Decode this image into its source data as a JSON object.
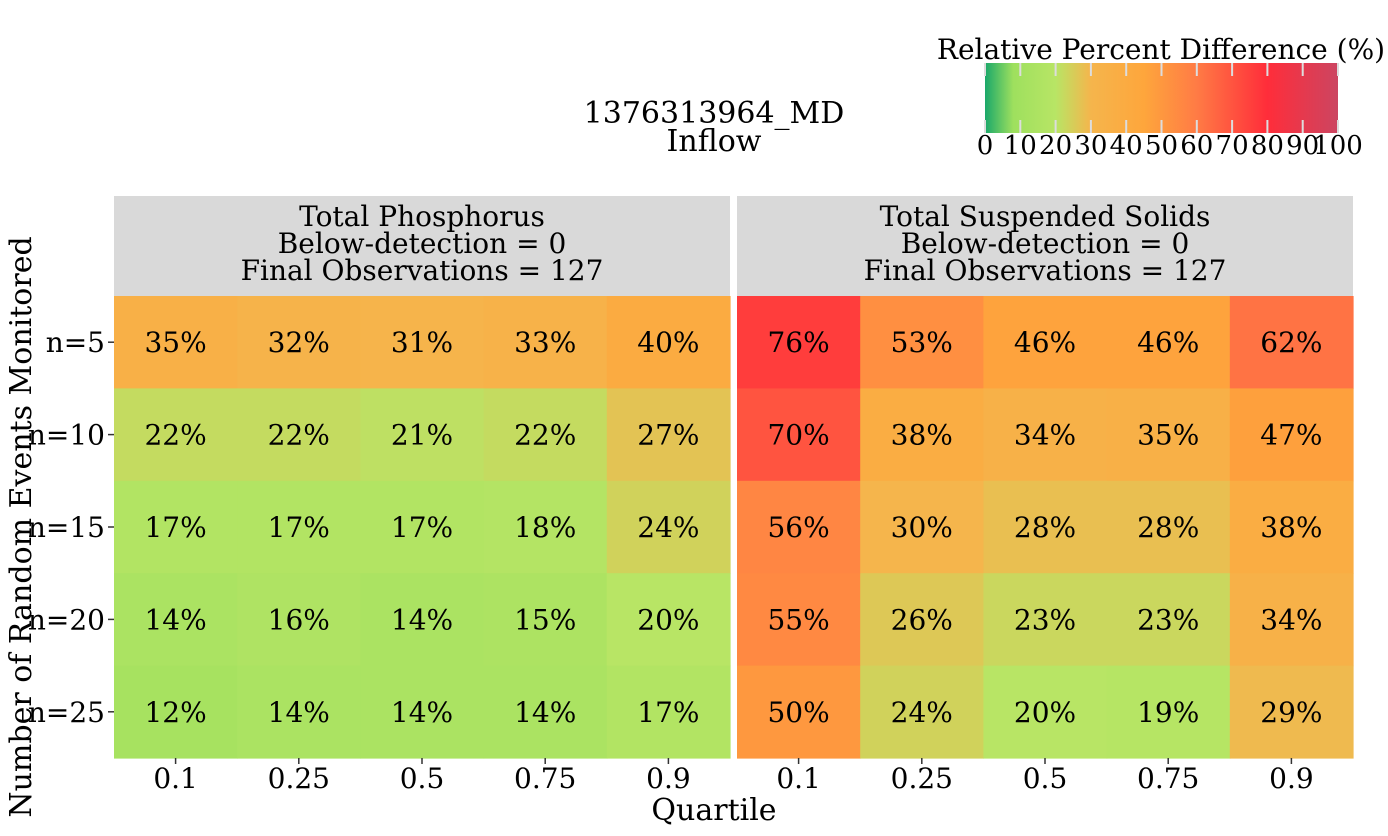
{
  "title": "1376313964_MD",
  "subtitle": "Inflow",
  "legend": {
    "title": "Relative Percent Difference (%)",
    "ticks": [
      "0",
      "10",
      "20",
      "30",
      "40",
      "50",
      "60",
      "70",
      "80",
      "90",
      "100"
    ],
    "range": [
      0,
      100
    ],
    "colors": [
      "#1aa86a",
      "#b2e661",
      "#fdae3d",
      "#ff2d3a",
      "#cc4561"
    ],
    "placement": "top-right"
  },
  "chart_data": {
    "type": "heatmap",
    "xlabel": "Quartile",
    "ylabel": "Number of Random Events Monitored",
    "x_categories": [
      "0.1",
      "0.25",
      "0.5",
      "0.75",
      "0.9"
    ],
    "y_categories": [
      "n=5",
      "n=10",
      "n=15",
      "n=20",
      "n=25"
    ],
    "value_suffix": "%",
    "color_range": [
      0,
      100
    ],
    "panels": [
      {
        "header": [
          "Total Phosphorus",
          "Below-detection = 0",
          "Final Observations = 127"
        ],
        "values": [
          [
            35,
            32,
            31,
            33,
            40
          ],
          [
            22,
            22,
            21,
            22,
            27
          ],
          [
            17,
            17,
            17,
            18,
            24
          ],
          [
            14,
            16,
            14,
            15,
            20
          ],
          [
            12,
            14,
            14,
            14,
            17
          ]
        ]
      },
      {
        "header": [
          "Total Suspended Solids",
          "Below-detection = 0",
          "Final Observations = 127"
        ],
        "values": [
          [
            76,
            53,
            46,
            46,
            62
          ],
          [
            70,
            38,
            34,
            35,
            47
          ],
          [
            56,
            30,
            28,
            28,
            38
          ],
          [
            55,
            26,
            23,
            23,
            34
          ],
          [
            50,
            24,
            20,
            19,
            29
          ]
        ]
      }
    ]
  }
}
